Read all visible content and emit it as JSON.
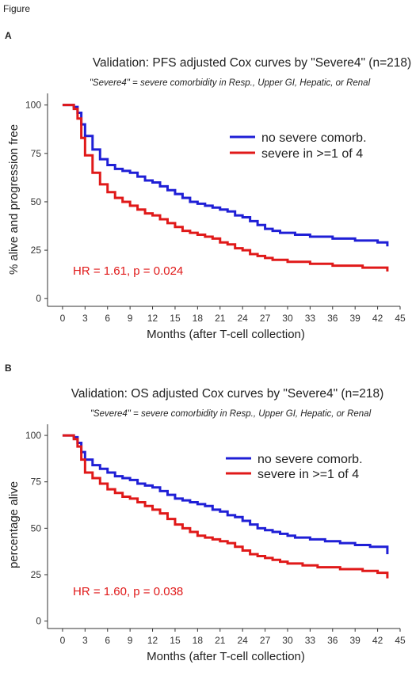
{
  "figure_label": "Figure",
  "panels": [
    {
      "label": "A",
      "subtitle": "\"Severe4\" = severe comorbidity in Resp., Upper GI, Hepatic, or Renal",
      "annotation": "HR = 1.61, p = 0.024",
      "legend": [
        "no severe comorb.",
        "severe in >=1 of 4"
      ]
    },
    {
      "label": "B",
      "subtitle": "\"Severe4\" = severe comorbidity in Resp., Upper GI, Hepatic, or Renal",
      "annotation": "HR = 1.60, p = 0.038",
      "legend": [
        "no severe comorb.",
        "severe in >=1 of 4"
      ]
    }
  ],
  "chart_data": [
    {
      "type": "line",
      "title": "Validation: PFS adjusted Cox curves by \"Severe4\"  (n=218)",
      "xlabel": "Months  (after T-cell collection)",
      "ylabel": "% alive and progression free",
      "xlim": [
        -2,
        45
      ],
      "ylim": [
        -4,
        106
      ],
      "xticks": [
        0,
        3,
        6,
        9,
        12,
        15,
        18,
        21,
        24,
        27,
        30,
        33,
        36,
        39,
        42,
        45
      ],
      "yticks": [
        0,
        25,
        50,
        75,
        100
      ],
      "grid": false,
      "legend_position": "top-right",
      "colors": {
        "no_severe": "#1f1fd6",
        "severe": "#e01919",
        "annotation": "#e01919"
      },
      "series": [
        {
          "name": "no severe comorb.",
          "x": [
            0,
            1,
            1.5,
            2,
            2.5,
            3,
            4,
            5,
            6,
            7,
            8,
            9,
            10,
            11,
            12,
            13,
            14,
            15,
            16,
            17,
            18,
            19,
            20,
            21,
            22,
            23,
            24,
            25,
            26,
            27,
            28,
            29,
            30,
            31,
            32,
            33,
            34,
            35,
            36,
            37,
            38,
            39,
            40,
            41,
            42,
            43,
            43.3
          ],
          "y": [
            100,
            100,
            99,
            96,
            90,
            84,
            77,
            72,
            69,
            67,
            66,
            65,
            63,
            61,
            60,
            58,
            56,
            54,
            52,
            50,
            49,
            48,
            47,
            46,
            45,
            43,
            42,
            40,
            38,
            36,
            35,
            34,
            34,
            33,
            33,
            32,
            32,
            32,
            31,
            31,
            31,
            30,
            30,
            30,
            29,
            29,
            27
          ]
        },
        {
          "name": "severe in >=1 of 4",
          "x": [
            0,
            1,
            1.5,
            2,
            2.5,
            3,
            4,
            5,
            6,
            7,
            8,
            9,
            10,
            11,
            12,
            13,
            14,
            15,
            16,
            17,
            18,
            19,
            20,
            21,
            22,
            23,
            24,
            25,
            26,
            27,
            28,
            29,
            30,
            31,
            32,
            33,
            34,
            35,
            36,
            37,
            38,
            39,
            40,
            41,
            42,
            43,
            43.3
          ],
          "y": [
            100,
            100,
            98,
            93,
            83,
            74,
            65,
            59,
            55,
            52,
            50,
            48,
            46,
            44,
            43,
            41,
            39,
            37,
            35,
            34,
            33,
            32,
            31,
            29,
            28,
            26,
            25,
            23,
            22,
            21,
            20,
            20,
            19,
            19,
            19,
            18,
            18,
            18,
            17,
            17,
            17,
            17,
            16,
            16,
            16,
            16,
            14
          ]
        }
      ]
    },
    {
      "type": "line",
      "title": "Validation: OS adjusted Cox curves by \"Severe4\"  (n=218)",
      "xlabel": "Months  (after T-cell collection)",
      "ylabel": "percentage alive",
      "xlim": [
        -2,
        45
      ],
      "ylim": [
        -4,
        106
      ],
      "xticks": [
        0,
        3,
        6,
        9,
        12,
        15,
        18,
        21,
        24,
        27,
        30,
        33,
        36,
        39,
        42,
        45
      ],
      "yticks": [
        0,
        25,
        50,
        75,
        100
      ],
      "grid": false,
      "legend_position": "top-right",
      "colors": {
        "no_severe": "#1f1fd6",
        "severe": "#e01919",
        "annotation": "#e01919"
      },
      "series": [
        {
          "name": "no severe comorb.",
          "x": [
            0,
            1,
            1.5,
            2,
            2.5,
            3,
            4,
            5,
            6,
            7,
            8,
            9,
            10,
            11,
            12,
            13,
            14,
            15,
            16,
            17,
            18,
            19,
            20,
            21,
            22,
            23,
            24,
            25,
            26,
            27,
            28,
            29,
            30,
            31,
            32,
            33,
            34,
            35,
            36,
            37,
            38,
            39,
            40,
            41,
            42,
            43,
            43.3
          ],
          "y": [
            100,
            100,
            99,
            96,
            91,
            87,
            84,
            82,
            80,
            78,
            77,
            76,
            74,
            73,
            72,
            70,
            68,
            66,
            65,
            64,
            63,
            62,
            60,
            59,
            57,
            56,
            54,
            52,
            50,
            49,
            48,
            47,
            46,
            45,
            45,
            44,
            44,
            43,
            43,
            42,
            42,
            41,
            41,
            40,
            40,
            40,
            36
          ]
        },
        {
          "name": "severe in >=1 of 4",
          "x": [
            0,
            1,
            1.5,
            2,
            2.5,
            3,
            4,
            5,
            6,
            7,
            8,
            9,
            10,
            11,
            12,
            13,
            14,
            15,
            16,
            17,
            18,
            19,
            20,
            21,
            22,
            23,
            24,
            25,
            26,
            27,
            28,
            29,
            30,
            31,
            32,
            33,
            34,
            35,
            36,
            37,
            38,
            39,
            40,
            41,
            42,
            43,
            43.3
          ],
          "y": [
            100,
            100,
            98,
            94,
            87,
            80,
            77,
            74,
            71,
            69,
            67,
            66,
            64,
            62,
            60,
            58,
            55,
            52,
            50,
            48,
            46,
            45,
            44,
            43,
            42,
            40,
            38,
            36,
            35,
            34,
            33,
            32,
            31,
            31,
            30,
            30,
            29,
            29,
            29,
            28,
            28,
            28,
            27,
            27,
            26,
            26,
            23
          ]
        }
      ]
    }
  ]
}
